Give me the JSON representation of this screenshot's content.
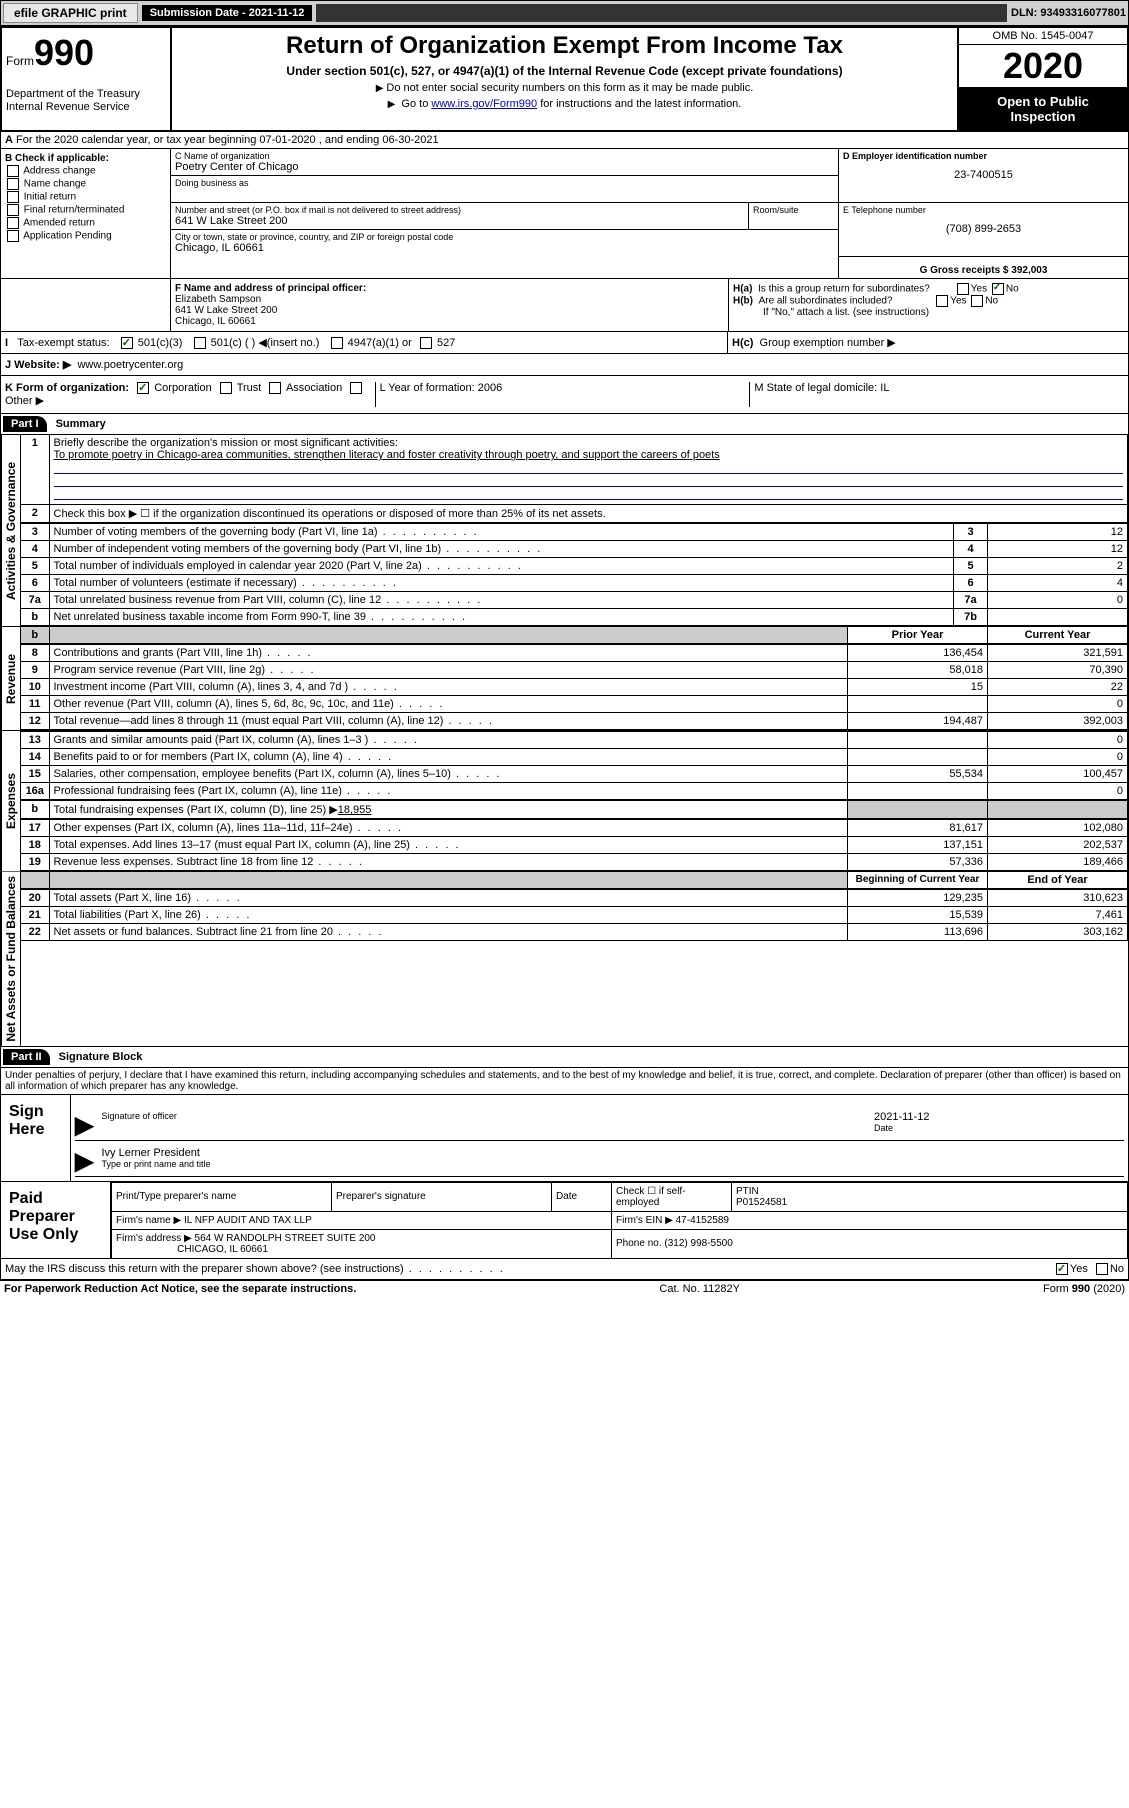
{
  "header": {
    "efile_btn": "efile GRAPHIC print",
    "submission_label": "Submission Date - 2021-11-12",
    "dln": "DLN: 93493316077801"
  },
  "form_top": {
    "form_label": "Form",
    "form_number": "990",
    "dept1": "Department of the Treasury",
    "dept2": "Internal Revenue Service",
    "title": "Return of Organization Exempt From Income Tax",
    "subtitle": "Under section 501(c), 527, or 4947(a)(1) of the Internal Revenue Code (except private foundations)",
    "note1": "Do not enter social security numbers on this form as it may be made public.",
    "note2_pre": "Go to ",
    "note2_link": "www.irs.gov/Form990",
    "note2_post": " for instructions and the latest information.",
    "omb": "OMB No. 1545-0047",
    "year": "2020",
    "inspect": "Open to Public Inspection"
  },
  "section_a": {
    "text": "For the 2020 calendar year, or tax year beginning 07-01-2020    , and ending 06-30-2021"
  },
  "section_b": {
    "header": "B Check if applicable:",
    "opts": [
      "Address change",
      "Name change",
      "Initial return",
      "Final return/terminated",
      "Amended return",
      "Application Pending"
    ]
  },
  "section_c": {
    "name_lbl": "C Name of organization",
    "name": "Poetry Center of Chicago",
    "dba_lbl": "Doing business as",
    "street_lbl": "Number and street (or P.O. box if mail is not delivered to street address)",
    "room_lbl": "Room/suite",
    "street": "641 W Lake Street 200",
    "city_lbl": "City or town, state or province, country, and ZIP or foreign postal code",
    "city": "Chicago, IL  60661"
  },
  "section_d": {
    "lbl": "D Employer identification number",
    "val": "23-7400515"
  },
  "section_e": {
    "lbl": "E Telephone number",
    "val": "(708) 899-2653"
  },
  "section_g": {
    "lbl": "G Gross receipts $ 392,003"
  },
  "section_f": {
    "lbl": "F  Name and address of principal officer:",
    "name": "Elizabeth Sampson",
    "street": "641 W Lake Street 200",
    "city": "Chicago, IL  60661"
  },
  "section_h": {
    "ha": "Is this a group return for subordinates?",
    "hb": "Are all subordinates included?",
    "hb_note": "If \"No,\" attach a list. (see instructions)",
    "hc": "Group exemption number ▶"
  },
  "section_i": {
    "lbl": "Tax-exempt status:",
    "opts": [
      "501(c)(3)",
      "501(c) (  ) ◀(insert no.)",
      "4947(a)(1) or",
      "527"
    ]
  },
  "section_j": {
    "lbl": "J   Website: ▶",
    "val": "www.poetrycenter.org"
  },
  "section_k": {
    "lbl": "K Form of organization:",
    "opts": [
      "Corporation",
      "Trust",
      "Association",
      "Other ▶"
    ]
  },
  "section_l": {
    "lbl": "L Year of formation: 2006"
  },
  "section_m": {
    "lbl": "M State of legal domicile: IL"
  },
  "part1": {
    "hdr": "Part I",
    "title": "Summary",
    "side_gov": "Activities & Governance",
    "side_rev": "Revenue",
    "side_exp": "Expenses",
    "side_net": "Net Assets or Fund Balances",
    "line1_lbl": "Briefly describe the organization's mission or most significant activities:",
    "line1_val": "To promote poetry in Chicago-area communities, strengthen literacy and foster creativity through poetry, and support the careers of poets",
    "line2": "Check this box ▶ ☐  if the organization discontinued its operations or disposed of more than 25% of its net assets.",
    "gov_rows": [
      {
        "n": "3",
        "desc": "Number of voting members of the governing body (Part VI, line 1a)",
        "box": "3",
        "val": "12"
      },
      {
        "n": "4",
        "desc": "Number of independent voting members of the governing body (Part VI, line 1b)",
        "box": "4",
        "val": "12"
      },
      {
        "n": "5",
        "desc": "Total number of individuals employed in calendar year 2020 (Part V, line 2a)",
        "box": "5",
        "val": "2"
      },
      {
        "n": "6",
        "desc": "Total number of volunteers (estimate if necessary)",
        "box": "6",
        "val": "4"
      },
      {
        "n": "7a",
        "desc": "Total unrelated business revenue from Part VIII, column (C), line 12",
        "box": "7a",
        "val": "0"
      },
      {
        "n": "b",
        "desc": "Net unrelated business taxable income from Form 990-T, line 39",
        "box": "7b",
        "val": ""
      }
    ],
    "col_prior": "Prior Year",
    "col_curr": "Current Year",
    "rev_rows": [
      {
        "n": "8",
        "desc": "Contributions and grants (Part VIII, line 1h)",
        "p": "136,454",
        "c": "321,591"
      },
      {
        "n": "9",
        "desc": "Program service revenue (Part VIII, line 2g)",
        "p": "58,018",
        "c": "70,390"
      },
      {
        "n": "10",
        "desc": "Investment income (Part VIII, column (A), lines 3, 4, and 7d )",
        "p": "15",
        "c": "22"
      },
      {
        "n": "11",
        "desc": "Other revenue (Part VIII, column (A), lines 5, 6d, 8c, 9c, 10c, and 11e)",
        "p": "",
        "c": "0"
      },
      {
        "n": "12",
        "desc": "Total revenue—add lines 8 through 11 (must equal Part VIII, column (A), line 12)",
        "p": "194,487",
        "c": "392,003"
      }
    ],
    "exp_rows": [
      {
        "n": "13",
        "desc": "Grants and similar amounts paid (Part IX, column (A), lines 1–3 )",
        "p": "",
        "c": "0"
      },
      {
        "n": "14",
        "desc": "Benefits paid to or for members (Part IX, column (A), line 4)",
        "p": "",
        "c": "0"
      },
      {
        "n": "15",
        "desc": "Salaries, other compensation, employee benefits (Part IX, column (A), lines 5–10)",
        "p": "55,534",
        "c": "100,457"
      },
      {
        "n": "16a",
        "desc": "Professional fundraising fees (Part IX, column (A), line 11e)",
        "p": "",
        "c": "0"
      }
    ],
    "line16b_pre": "Total fundraising expenses (Part IX, column (D), line 25) ▶",
    "line16b_val": "18,955",
    "exp_rows2": [
      {
        "n": "17",
        "desc": "Other expenses (Part IX, column (A), lines 11a–11d, 11f–24e)",
        "p": "81,617",
        "c": "102,080"
      },
      {
        "n": "18",
        "desc": "Total expenses. Add lines 13–17 (must equal Part IX, column (A), line 25)",
        "p": "137,151",
        "c": "202,537"
      },
      {
        "n": "19",
        "desc": "Revenue less expenses. Subtract line 18 from line 12",
        "p": "57,336",
        "c": "189,466"
      }
    ],
    "col_beg": "Beginning of Current Year",
    "col_end": "End of Year",
    "net_rows": [
      {
        "n": "20",
        "desc": "Total assets (Part X, line 16)",
        "p": "129,235",
        "c": "310,623"
      },
      {
        "n": "21",
        "desc": "Total liabilities (Part X, line 26)",
        "p": "15,539",
        "c": "7,461"
      },
      {
        "n": "22",
        "desc": "Net assets or fund balances. Subtract line 21 from line 20",
        "p": "113,696",
        "c": "303,162"
      }
    ]
  },
  "part2": {
    "hdr": "Part II",
    "title": "Signature Block",
    "perjury": "Under penalties of perjury, I declare that I have examined this return, including accompanying schedules and statements, and to the best of my knowledge and belief, it is true, correct, and complete. Declaration of preparer (other than officer) is based on all information of which preparer has any knowledge.",
    "sign_here": "Sign Here",
    "sig_officer": "Signature of officer",
    "sig_date": "Date",
    "sig_date_val": "2021-11-12",
    "officer_name": "Ivy Lerner  President",
    "officer_name_lbl": "Type or print name and title",
    "paid_prep": "Paid Preparer Use Only",
    "prep_name_lbl": "Print/Type preparer's name",
    "prep_sig_lbl": "Preparer's signature",
    "date_lbl": "Date",
    "self_emp": "Check ☐ if self-employed",
    "ptin_lbl": "PTIN",
    "ptin": "P01524581",
    "firm_name_lbl": "Firm's name    ▶",
    "firm_name": "IL NFP AUDIT AND TAX LLP",
    "firm_ein_lbl": "Firm's EIN ▶",
    "firm_ein": "47-4152589",
    "firm_addr_lbl": "Firm's address ▶",
    "firm_addr": "564 W RANDOLPH STREET SUITE 200",
    "firm_addr2": "CHICAGO, IL  60661",
    "phone_lbl": "Phone no.",
    "phone": "(312) 998-5500",
    "discuss": "May the IRS discuss this return with the preparer shown above? (see instructions)"
  },
  "footer": {
    "left": "For Paperwork Reduction Act Notice, see the separate instructions.",
    "mid": "Cat. No. 11282Y",
    "right": "Form 990 (2020)"
  }
}
